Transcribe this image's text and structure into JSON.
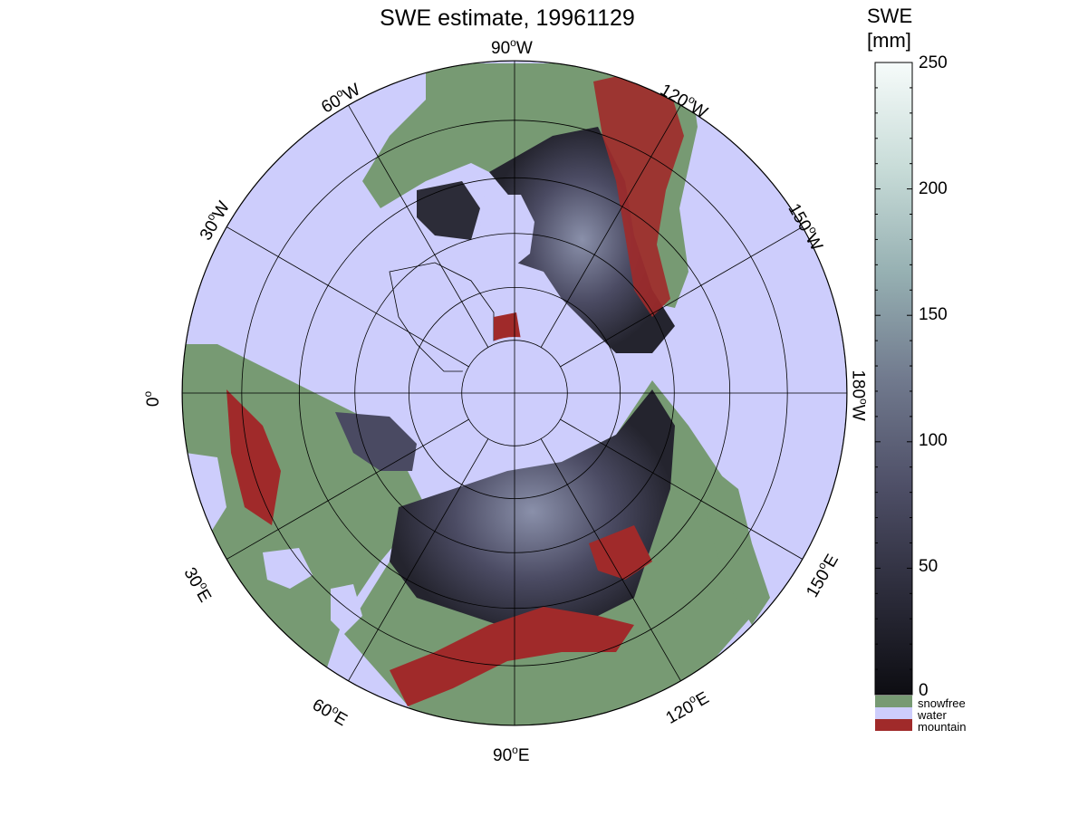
{
  "title": "SWE estimate, 19961129",
  "colorbar": {
    "title": "SWE",
    "unit": "[mm]",
    "range": [
      0,
      250
    ],
    "ticks": [
      "250",
      "200",
      "150",
      "100",
      "50",
      "0"
    ],
    "colormap": [
      "#0d0d12",
      "#2d2d3c",
      "#4f5068",
      "#717a8e",
      "#96b0b2",
      "#c8dcd8",
      "#f6fbfa"
    ]
  },
  "legend": {
    "snowfree": {
      "label": "snowfree",
      "color": "#779a73"
    },
    "water": {
      "label": "water",
      "color": "#cdcdfc"
    },
    "mountain": {
      "label": "mountain",
      "color": "#a02a2a"
    }
  },
  "map": {
    "projection": "north polar stereographic",
    "lat_circles": [
      "80",
      "70",
      "60",
      "50",
      "40",
      "30",
      "20"
    ],
    "meridian_step_deg": 30,
    "longitude_labels": [
      {
        "deg": "90",
        "hemi": "W"
      },
      {
        "deg": "120",
        "hemi": "W"
      },
      {
        "deg": "150",
        "hemi": "W"
      },
      {
        "deg": "180",
        "hemi": "W"
      },
      {
        "deg": "150",
        "hemi": "E"
      },
      {
        "deg": "120",
        "hemi": "E"
      },
      {
        "deg": "90",
        "hemi": "E"
      },
      {
        "deg": "60",
        "hemi": "E"
      },
      {
        "deg": "30",
        "hemi": "E"
      },
      {
        "deg": "0",
        "hemi": ""
      },
      {
        "deg": "30",
        "hemi": "W"
      },
      {
        "deg": "60",
        "hemi": "W"
      }
    ],
    "colors": {
      "water": "#cdcdfc",
      "snowfree": "#779a73",
      "mountain": "#a02a2a",
      "snow_low": "#2a2a36",
      "snow_mid": "#4a4a62",
      "snow_high": "#7d84a0",
      "grid": "#000000"
    }
  }
}
